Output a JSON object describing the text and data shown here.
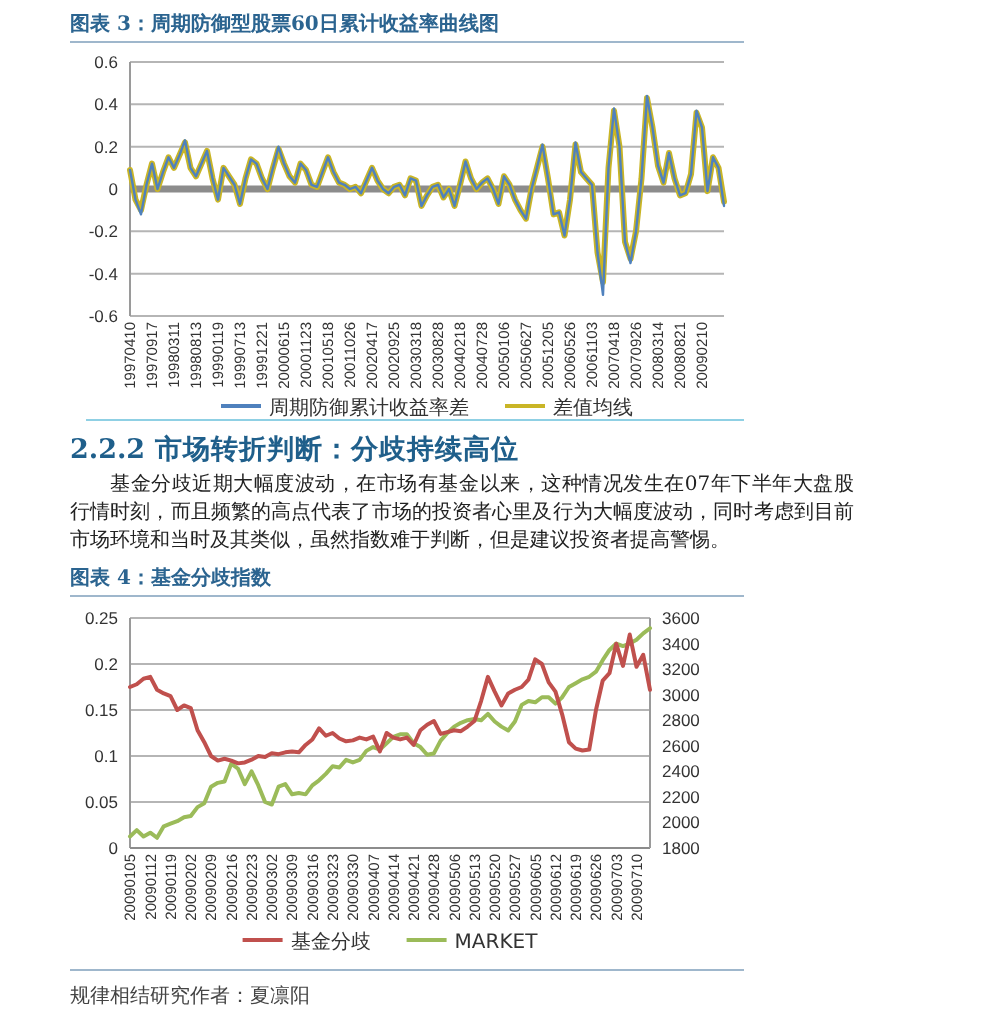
{
  "chart_data": [
    {
      "type": "line",
      "title": "图表 3：周期防御型股票60日累计收益率曲线图",
      "categories": [
        "19970410",
        null,
        null,
        null,
        "19970917",
        null,
        null,
        null,
        "19980311",
        null,
        null,
        null,
        "19980813",
        null,
        null,
        null,
        "19990119",
        null,
        null,
        null,
        "19990713",
        null,
        null,
        null,
        "19991221",
        null,
        null,
        null,
        "20000615",
        null,
        null,
        null,
        "20001123",
        null,
        null,
        null,
        "20010518",
        null,
        null,
        null,
        "20011026",
        null,
        null,
        null,
        "20020417",
        null,
        null,
        null,
        "20020925",
        null,
        null,
        null,
        "20030318",
        null,
        null,
        null,
        "20030828",
        null,
        null,
        null,
        "20040218",
        null,
        null,
        null,
        "20040728",
        null,
        null,
        null,
        "20050106",
        null,
        null,
        null,
        "20050627",
        null,
        null,
        null,
        "20051205",
        null,
        null,
        null,
        "20060526",
        null,
        null,
        null,
        "20061103",
        null,
        null,
        null,
        "20070418",
        null,
        null,
        null,
        "20070926",
        null,
        null,
        null,
        "20080314",
        null,
        null,
        null,
        "20080821",
        null,
        null,
        null,
        "20090210",
        null,
        null,
        null,
        null
      ],
      "series": [
        {
          "name": "周期防御累计收益率差",
          "color": "#4f81bd",
          "values": [
            0.09,
            -0.05,
            -0.12,
            0.02,
            0.12,
            0.0,
            0.08,
            0.15,
            0.1,
            0.16,
            0.23,
            0.1,
            0.06,
            0.12,
            0.18,
            0.05,
            -0.05,
            0.1,
            0.06,
            0.02,
            -0.07,
            0.05,
            0.14,
            0.12,
            0.05,
            0.0,
            0.1,
            0.2,
            0.12,
            0.06,
            0.03,
            0.12,
            0.09,
            0.02,
            0.01,
            0.08,
            0.15,
            0.08,
            0.03,
            0.02,
            0.0,
            0.01,
            -0.02,
            0.04,
            0.1,
            0.04,
            0.0,
            -0.02,
            0.01,
            0.02,
            -0.03,
            0.05,
            0.04,
            -0.08,
            -0.03,
            0.01,
            0.02,
            -0.04,
            0.0,
            -0.08,
            0.02,
            0.13,
            0.05,
            0.0,
            0.03,
            0.05,
            0.0,
            -0.07,
            0.06,
            0.02,
            -0.05,
            -0.1,
            -0.14,
            0.0,
            0.1,
            0.21,
            0.05,
            -0.12,
            -0.11,
            -0.22,
            -0.05,
            0.22,
            0.08,
            0.05,
            0.02,
            -0.3,
            -0.5,
            0.1,
            0.38,
            0.2,
            -0.25,
            -0.35,
            -0.2,
            0.05,
            0.44,
            0.29,
            0.11,
            0.03,
            0.17,
            0.05,
            -0.03,
            -0.02,
            0.07,
            0.37,
            0.29,
            -0.01,
            0.15,
            0.1,
            -0.08
          ]
        },
        {
          "name": "差值均线",
          "color": "#c9b526",
          "values": [
            0.09,
            -0.05,
            -0.1,
            0.02,
            0.12,
            0.0,
            0.08,
            0.15,
            0.1,
            0.16,
            0.22,
            0.1,
            0.06,
            0.12,
            0.18,
            0.05,
            -0.05,
            0.1,
            0.06,
            0.02,
            -0.07,
            0.05,
            0.14,
            0.12,
            0.05,
            0.0,
            0.1,
            0.19,
            0.12,
            0.06,
            0.03,
            0.12,
            0.09,
            0.02,
            0.01,
            0.08,
            0.15,
            0.08,
            0.03,
            0.02,
            0.0,
            0.01,
            -0.02,
            0.04,
            0.1,
            0.04,
            0.0,
            -0.02,
            0.01,
            0.02,
            -0.03,
            0.05,
            0.04,
            -0.08,
            -0.03,
            0.01,
            0.02,
            -0.04,
            0.0,
            -0.08,
            0.02,
            0.13,
            0.05,
            0.0,
            0.03,
            0.05,
            0.0,
            -0.07,
            0.06,
            0.02,
            -0.05,
            -0.1,
            -0.14,
            0.0,
            0.1,
            0.2,
            0.05,
            -0.12,
            -0.11,
            -0.22,
            -0.05,
            0.21,
            0.08,
            0.05,
            0.02,
            -0.3,
            -0.44,
            0.1,
            0.37,
            0.2,
            -0.25,
            -0.33,
            -0.2,
            0.05,
            0.43,
            0.29,
            0.11,
            0.03,
            0.17,
            0.05,
            -0.03,
            -0.02,
            0.07,
            0.36,
            0.29,
            -0.01,
            0.15,
            0.1,
            -0.06
          ]
        }
      ],
      "ylim": [
        -0.6,
        0.6
      ],
      "yticks": [
        -0.6,
        -0.4,
        -0.2,
        0,
        0.2,
        0.4,
        0.6
      ],
      "grid": "y",
      "legend": "bottom"
    },
    {
      "type": "other",
      "title": "2.2.2 市场转折判断：分歧持续高位",
      "annotations": [
        "基金分歧近期大幅度波动，在市场有基金以来，这种情况发生在07年下半年大盘股行情时刻，而且频繁的高点代表了市场的投资者心里及行为大幅度波动，同时考虑到目前市场环境和当时及其类似，虽然指数难于判断，但是建议投资者提高警惕。"
      ]
    },
    {
      "type": "line",
      "title": "图表 4：基金分歧指数",
      "categories": [
        "20090105",
        null,
        null,
        "20090112",
        null,
        null,
        "20090119",
        null,
        null,
        "20090202",
        null,
        null,
        "20090209",
        null,
        null,
        "20090216",
        null,
        null,
        "20090223",
        null,
        null,
        "20090302",
        null,
        null,
        "20090309",
        null,
        null,
        "20090316",
        null,
        null,
        "20090323",
        null,
        null,
        "20090330",
        null,
        null,
        "20090407",
        null,
        null,
        "20090414",
        null,
        null,
        "20090421",
        null,
        null,
        "20090428",
        null,
        null,
        "20090506",
        null,
        null,
        "20090513",
        null,
        null,
        "20090520",
        null,
        null,
        "20090527",
        null,
        null,
        "20090605",
        null,
        null,
        "20090612",
        null,
        null,
        "20090619",
        null,
        null,
        "20090626",
        null,
        null,
        "20090703",
        null,
        null,
        "20090710",
        null,
        null
      ],
      "series": [
        {
          "name": "基金分歧",
          "color": "#c0504d",
          "values": [
            0.175,
            0.178,
            0.184,
            0.186,
            0.172,
            0.168,
            0.165,
            0.15,
            0.155,
            0.152,
            0.128,
            0.115,
            0.1,
            0.095,
            0.097,
            0.095,
            0.092,
            0.093,
            0.096,
            0.1,
            0.099,
            0.103,
            0.102,
            0.104,
            0.105,
            0.104,
            0.112,
            0.118,
            0.13,
            0.122,
            0.125,
            0.119,
            0.116,
            0.117,
            0.12,
            0.118,
            0.121,
            0.105,
            0.125,
            0.12,
            0.118,
            0.12,
            0.112,
            0.128,
            0.134,
            0.138,
            0.124,
            0.126,
            0.128,
            0.127,
            0.132,
            0.138,
            0.16,
            0.186,
            0.17,
            0.155,
            0.168,
            0.172,
            0.175,
            0.183,
            0.205,
            0.2,
            0.18,
            0.17,
            0.145,
            0.115,
            0.108,
            0.106,
            0.107,
            0.15,
            0.182,
            0.19,
            0.222,
            0.198,
            0.232,
            0.197,
            0.21,
            0.172
          ]
        },
        {
          "name": "MARKET",
          "color": "#9bbb59",
          "axis": "y2",
          "values": [
            1890,
            1940,
            1890,
            1920,
            1880,
            1970,
            1990,
            2010,
            2040,
            2050,
            2120,
            2150,
            2280,
            2310,
            2320,
            2460,
            2420,
            2300,
            2400,
            2290,
            2160,
            2140,
            2280,
            2300,
            2220,
            2230,
            2220,
            2290,
            2330,
            2380,
            2440,
            2430,
            2490,
            2470,
            2490,
            2560,
            2590,
            2570,
            2620,
            2670,
            2690,
            2690,
            2620,
            2590,
            2530,
            2540,
            2640,
            2700,
            2750,
            2780,
            2800,
            2810,
            2800,
            2850,
            2790,
            2750,
            2720,
            2790,
            2920,
            2950,
            2940,
            2980,
            2980,
            2930,
            2980,
            3060,
            3090,
            3120,
            3140,
            3180,
            3270,
            3350,
            3400,
            3380,
            3400,
            3430,
            3480,
            3520
          ]
        }
      ],
      "ylim": [
        0,
        0.25
      ],
      "yticks": [
        0,
        0.05,
        0.1,
        0.15,
        0.2,
        0.25
      ],
      "y2lim": [
        1800,
        3600
      ],
      "y2ticks": [
        1800,
        2000,
        2200,
        2400,
        2600,
        2800,
        3000,
        3200,
        3400,
        3600
      ],
      "grid": "y",
      "legend": "bottom",
      "annotations": [
        "规律相结研究作者：夏凛阳"
      ]
    }
  ]
}
